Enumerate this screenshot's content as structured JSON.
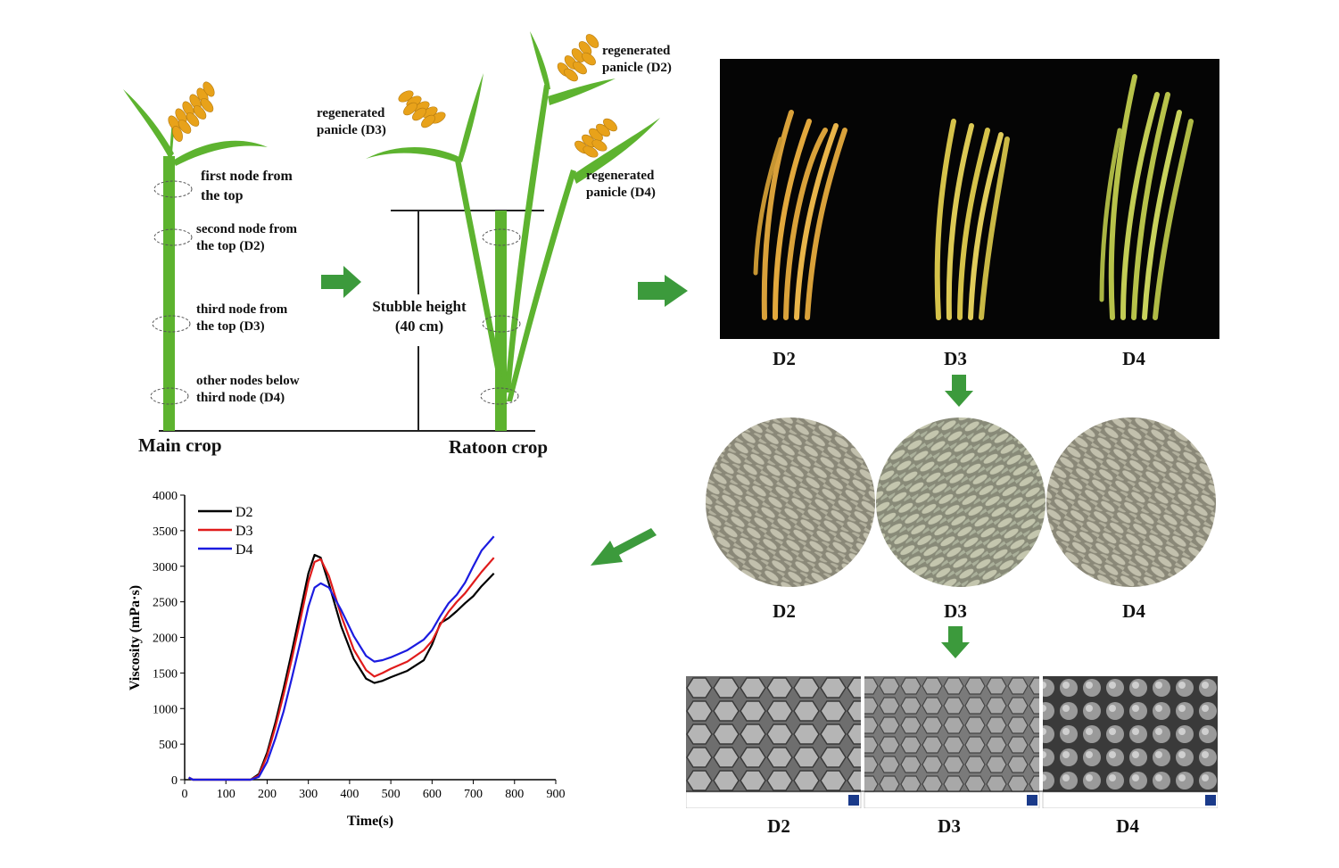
{
  "plants": {
    "main_crop": "Main crop",
    "ratoon_crop": "Ratoon crop",
    "stubble_height_line1": "Stubble height",
    "stubble_height_line2": "(40 cm)",
    "nodes": {
      "first_l1": "first node from",
      "first_l2": "the top",
      "second_l1": "second node from",
      "second_l2": "the top (D2)",
      "third_l1": "third node from",
      "third_l2": "the top (D3)",
      "other_l1": "other nodes below",
      "other_l2": "third node (D4)"
    },
    "panicles": {
      "d2_l1": "regenerated",
      "d2_l2": "panicle (D2)",
      "d3_l1": "regenerated",
      "d3_l2": "panicle (D3)",
      "d4_l1": "regenerated",
      "d4_l2": "panicle (D4)"
    }
  },
  "photo_panicles": {
    "labels": [
      "D2",
      "D3",
      "D4"
    ]
  },
  "photo_grains": {
    "labels": [
      "D2",
      "D3",
      "D4"
    ]
  },
  "photo_sem": {
    "labels": [
      "D2",
      "D3",
      "D4"
    ]
  },
  "colors": {
    "arrow": "#3c9a3c",
    "stem": "#5db32f",
    "D2": "#000000",
    "D3": "#e01b1b",
    "D4": "#1b1be0"
  },
  "chart_data": {
    "type": "line",
    "xlabel": "Time(s)",
    "ylabel": "Viscosity (mPa·s)",
    "xlim": [
      0,
      900
    ],
    "ylim": [
      0,
      4000
    ],
    "xticks": [
      0,
      100,
      200,
      300,
      400,
      500,
      600,
      700,
      800,
      900
    ],
    "yticks": [
      0,
      500,
      1000,
      1500,
      2000,
      2500,
      3000,
      3500,
      4000
    ],
    "grid": false,
    "legend": "top-left",
    "series": [
      {
        "name": "D2",
        "color": "#000000",
        "x": [
          10,
          20,
          160,
          180,
          200,
          220,
          240,
          260,
          280,
          300,
          315,
          330,
          350,
          380,
          410,
          440,
          460,
          480,
          500,
          540,
          580,
          600,
          620,
          640,
          660,
          680,
          700,
          720,
          750
        ],
        "y": [
          30,
          0,
          0,
          80,
          380,
          800,
          1280,
          1800,
          2350,
          2900,
          3160,
          3120,
          2750,
          2150,
          1700,
          1420,
          1360,
          1390,
          1440,
          1530,
          1680,
          1900,
          2200,
          2270,
          2370,
          2480,
          2580,
          2720,
          2900
        ]
      },
      {
        "name": "D3",
        "color": "#e01b1b",
        "x": [
          10,
          20,
          160,
          180,
          200,
          220,
          240,
          260,
          280,
          300,
          315,
          330,
          350,
          380,
          410,
          440,
          460,
          480,
          500,
          540,
          580,
          600,
          620,
          640,
          660,
          680,
          700,
          720,
          750
        ],
        "y": [
          30,
          0,
          0,
          60,
          340,
          740,
          1200,
          1700,
          2230,
          2780,
          3060,
          3100,
          2860,
          2300,
          1830,
          1540,
          1450,
          1500,
          1560,
          1660,
          1820,
          1950,
          2180,
          2360,
          2500,
          2620,
          2770,
          2920,
          3120
        ]
      },
      {
        "name": "D4",
        "color": "#1b1be0",
        "x": [
          10,
          20,
          160,
          180,
          200,
          220,
          240,
          260,
          280,
          300,
          315,
          330,
          350,
          380,
          410,
          440,
          460,
          480,
          500,
          540,
          580,
          600,
          620,
          640,
          660,
          680,
          700,
          720,
          750
        ],
        "y": [
          30,
          0,
          0,
          40,
          250,
          580,
          960,
          1430,
          1920,
          2430,
          2700,
          2760,
          2700,
          2380,
          2020,
          1740,
          1660,
          1680,
          1720,
          1820,
          1970,
          2100,
          2300,
          2480,
          2600,
          2770,
          3000,
          3220,
          3420
        ]
      }
    ]
  }
}
